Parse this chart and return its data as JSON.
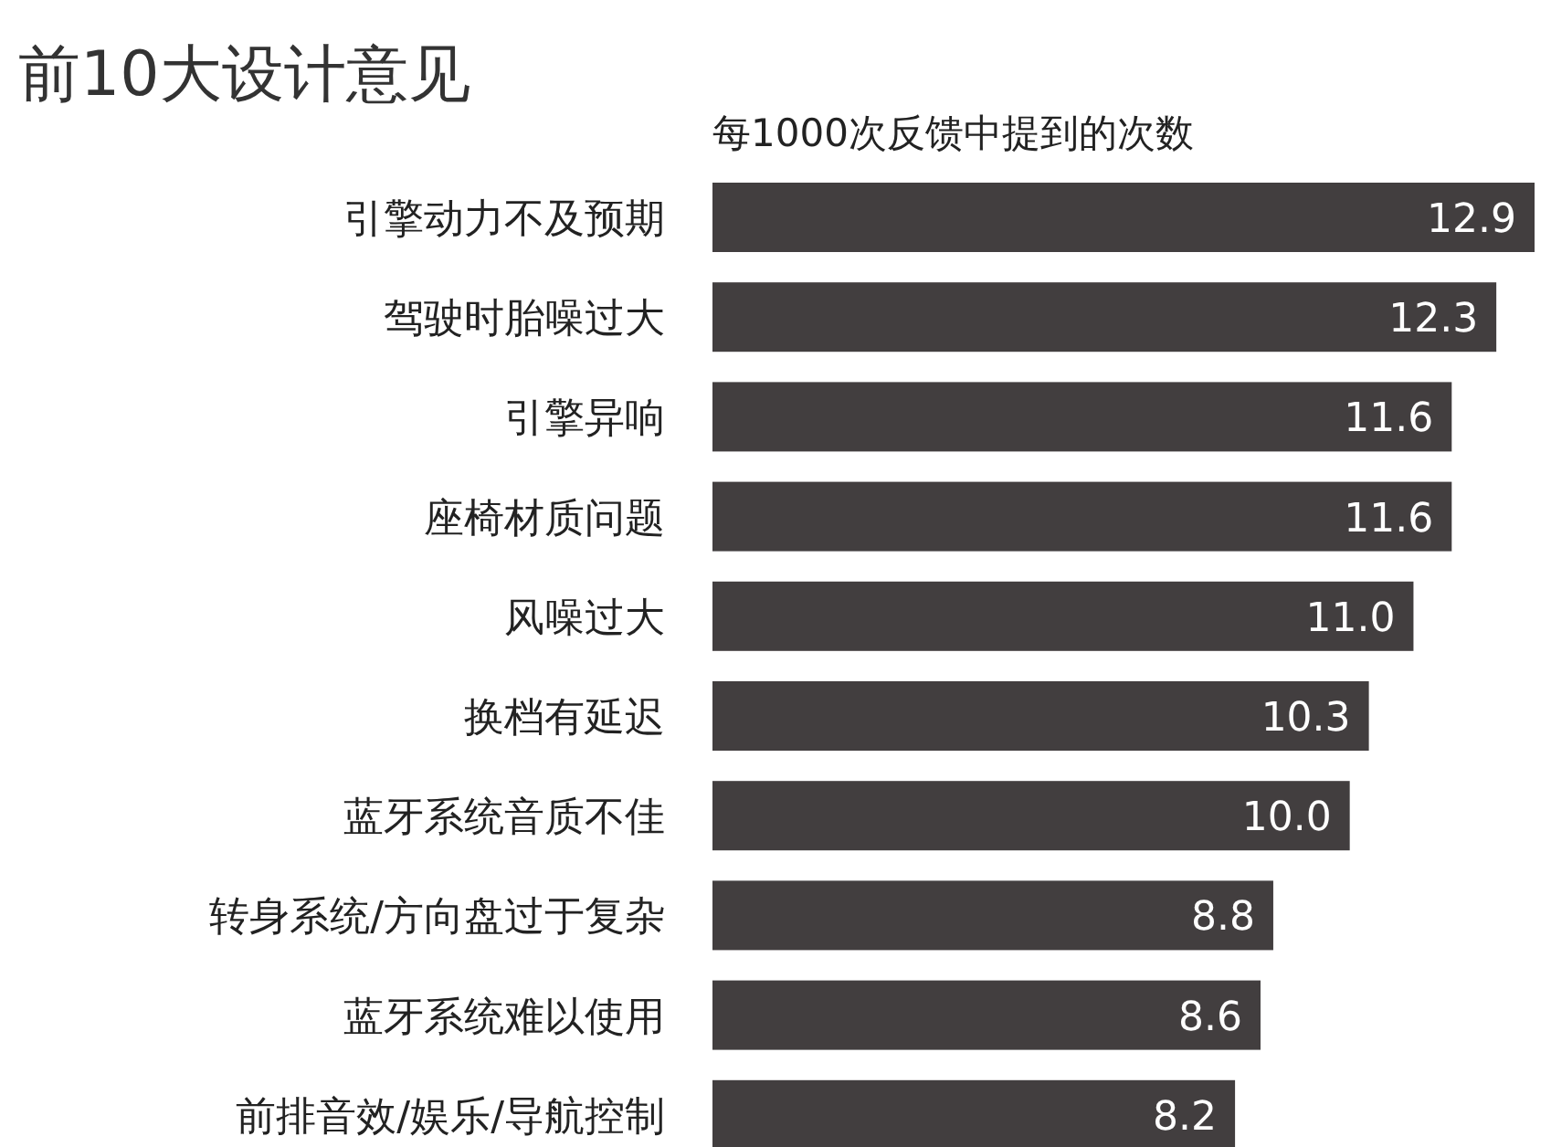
{
  "chart_data": {
    "type": "bar",
    "orientation": "horizontal",
    "title": "前10大设计意见",
    "subtitle": "每1000次反馈中提到的次数",
    "categories": [
      "引擎动力不及预期",
      "驾驶时胎噪过大",
      "引擎异响",
      "座椅材质问题",
      "风噪过大",
      "换档有延迟",
      "蓝牙系统音质不佳",
      "转身系统/方向盘过于复杂",
      "蓝牙系统难以使用",
      "前排音效/娱乐/导航控制"
    ],
    "values": [
      12.9,
      12.3,
      11.6,
      11.6,
      11.0,
      10.3,
      10.0,
      8.8,
      8.6,
      8.2
    ],
    "value_labels": [
      "12.9",
      "12.3",
      "11.6",
      "11.6",
      "11.0",
      "10.3",
      "10.0",
      "8.8",
      "8.6",
      "8.2"
    ],
    "color": "#423e3f"
  }
}
